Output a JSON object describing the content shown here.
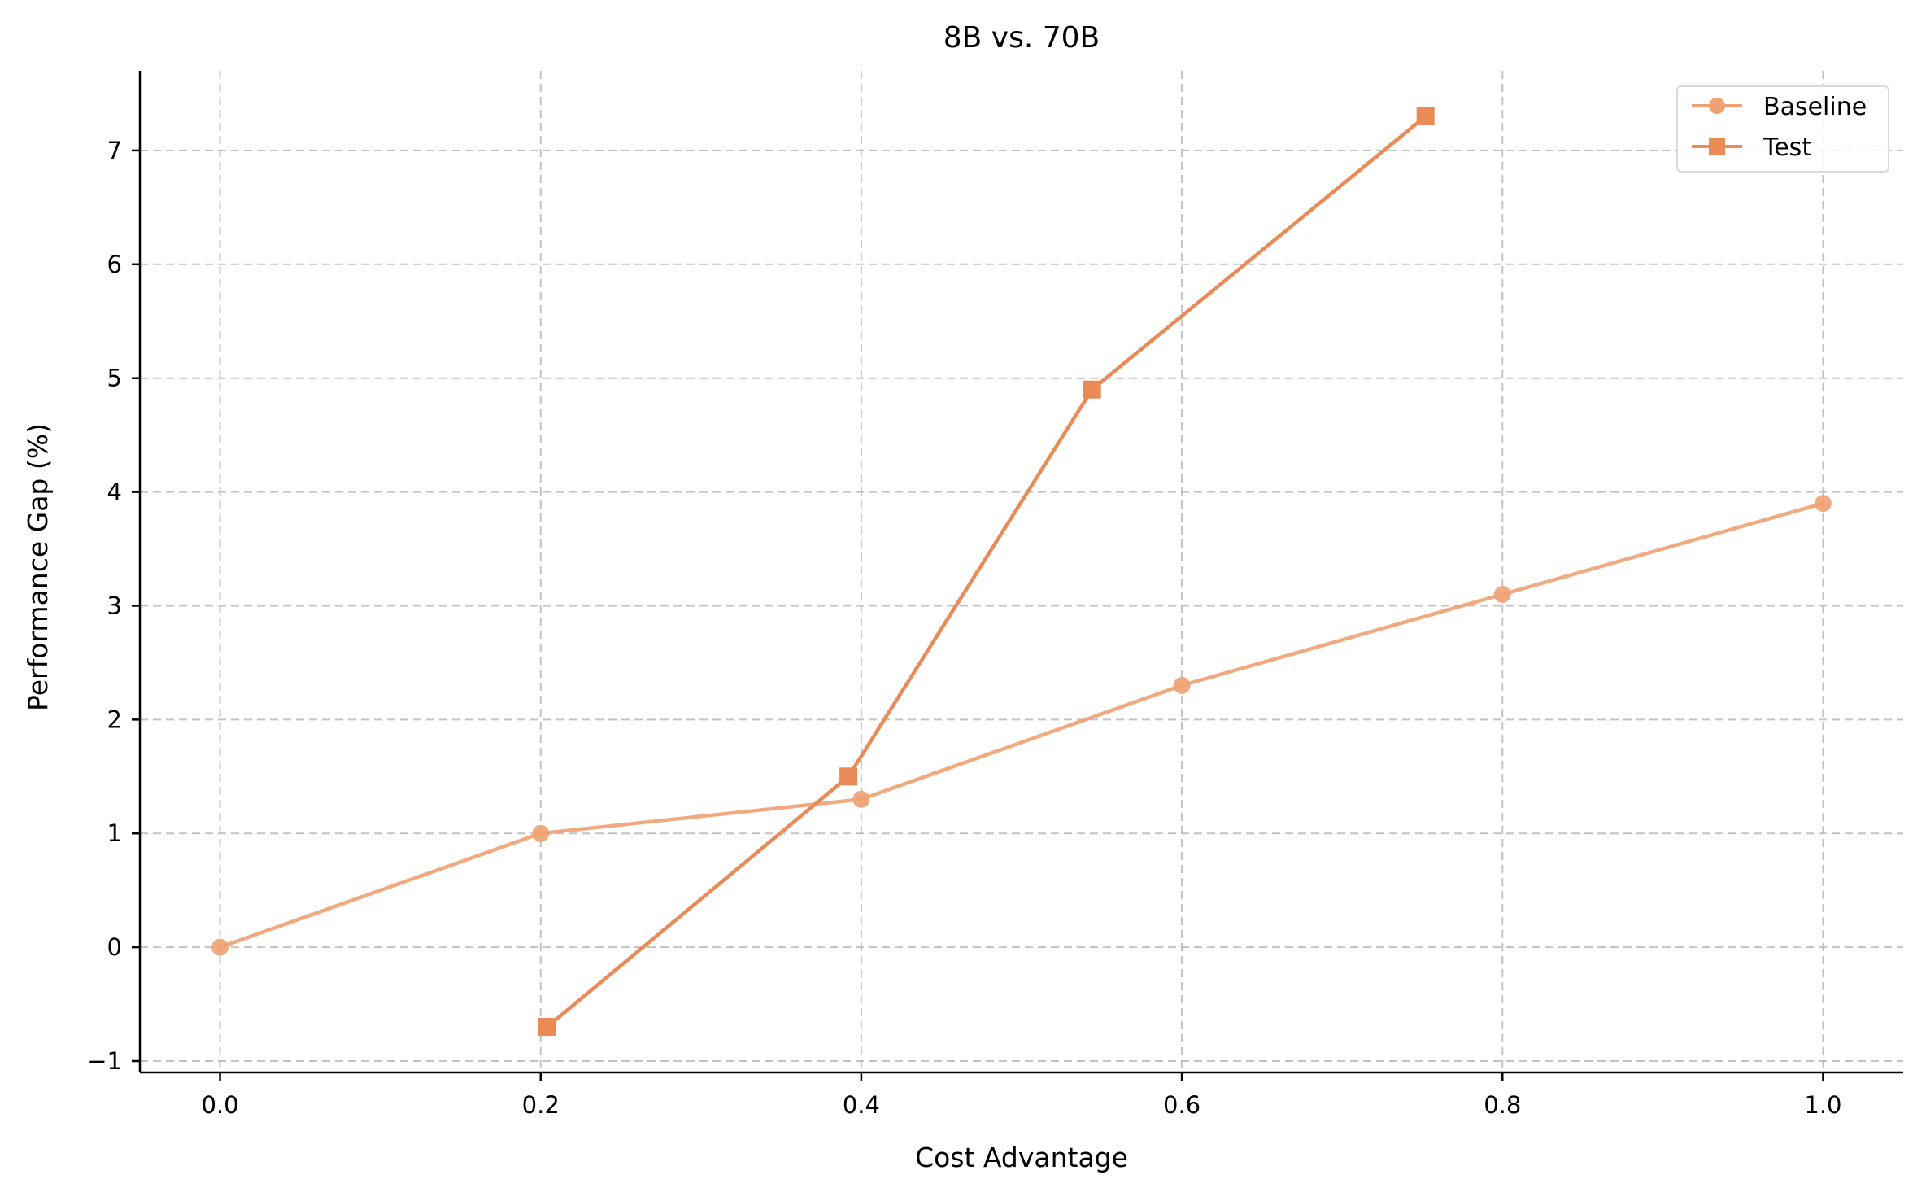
{
  "chart_data": {
    "type": "line",
    "title": "8B vs. 70B",
    "xlabel": "Cost Advantage",
    "ylabel": "Performance Gap (%)",
    "xlim": [
      -0.05,
      1.05
    ],
    "ylim": [
      -1.1,
      7.7
    ],
    "x_ticks": [
      0.0,
      0.2,
      0.4,
      0.6,
      0.8,
      1.0
    ],
    "x_tick_labels": [
      "0.0",
      "0.2",
      "0.4",
      "0.6",
      "0.8",
      "1.0"
    ],
    "y_ticks": [
      -1,
      0,
      1,
      2,
      3,
      4,
      5,
      6,
      7
    ],
    "y_tick_labels": [
      "−1",
      "0",
      "1",
      "2",
      "3",
      "4",
      "5",
      "6",
      "7"
    ],
    "grid": true,
    "legend_position": "top-right",
    "series": [
      {
        "name": "Baseline",
        "marker": "circle",
        "color": "#f0a172",
        "x": [
          0.0,
          0.2,
          0.4,
          0.6,
          0.8,
          1.0
        ],
        "y": [
          0.0,
          1.0,
          1.3,
          2.3,
          3.1,
          3.9
        ]
      },
      {
        "name": "Test",
        "marker": "square",
        "color": "#ea8a57",
        "x": [
          0.204,
          0.392,
          0.544,
          0.752
        ],
        "y": [
          -0.7,
          1.5,
          4.9,
          7.3
        ]
      }
    ]
  }
}
